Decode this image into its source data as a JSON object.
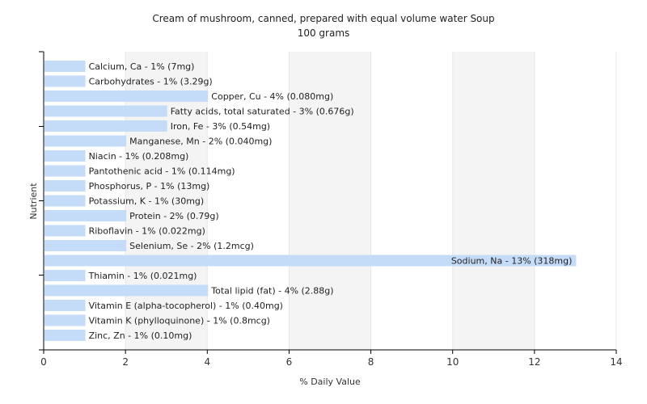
{
  "chart_data": {
    "type": "bar",
    "orientation": "horizontal",
    "title": "Cream of mushroom, canned, prepared with equal volume water Soup",
    "subtitle": "100 grams",
    "xlabel": "% Daily Value",
    "ylabel": "Nutrient",
    "xlim": [
      0,
      14
    ],
    "xticks": [
      0,
      2,
      4,
      6,
      8,
      10,
      12,
      14
    ],
    "grid": "vertical bands",
    "bar_color": "#c5dcf9",
    "categories": [
      "Calcium, Ca",
      "Carbohydrates",
      "Copper, Cu",
      "Fatty acids, total saturated",
      "Iron, Fe",
      "Manganese, Mn",
      "Niacin",
      "Pantothenic acid",
      "Phosphorus, P",
      "Potassium, K",
      "Protein",
      "Riboflavin",
      "Selenium, Se",
      "Sodium, Na",
      "Thiamin",
      "Total lipid (fat)",
      "Vitamin E (alpha-tocopherol)",
      "Vitamin K (phylloquinone)",
      "Zinc, Zn"
    ],
    "values": [
      1,
      1,
      4,
      3,
      3,
      2,
      1,
      1,
      1,
      1,
      2,
      1,
      2,
      13,
      1,
      4,
      1,
      1,
      1
    ],
    "labels": [
      "Calcium, Ca - 1% (7mg)",
      "Carbohydrates - 1% (3.29g)",
      "Copper, Cu - 4% (0.080mg)",
      "Fatty acids, total saturated - 3% (0.676g)",
      "Iron, Fe - 3% (0.54mg)",
      "Manganese, Mn - 2% (0.040mg)",
      "Niacin - 1% (0.208mg)",
      "Pantothenic acid - 1% (0.114mg)",
      "Phosphorus, P - 1% (13mg)",
      "Potassium, K - 1% (30mg)",
      "Protein - 2% (0.79g)",
      "Riboflavin - 1% (0.022mg)",
      "Selenium, Se - 2% (1.2mcg)",
      "Sodium, Na - 13% (318mg)",
      "Thiamin - 1% (0.021mg)",
      "Total lipid (fat) - 4% (2.88g)",
      "Vitamin E (alpha-tocopherol) - 1% (0.40mg)",
      "Vitamin K (phylloquinone) - 1% (0.8mcg)",
      "Zinc, Zn - 1% (0.10mg)"
    ]
  }
}
